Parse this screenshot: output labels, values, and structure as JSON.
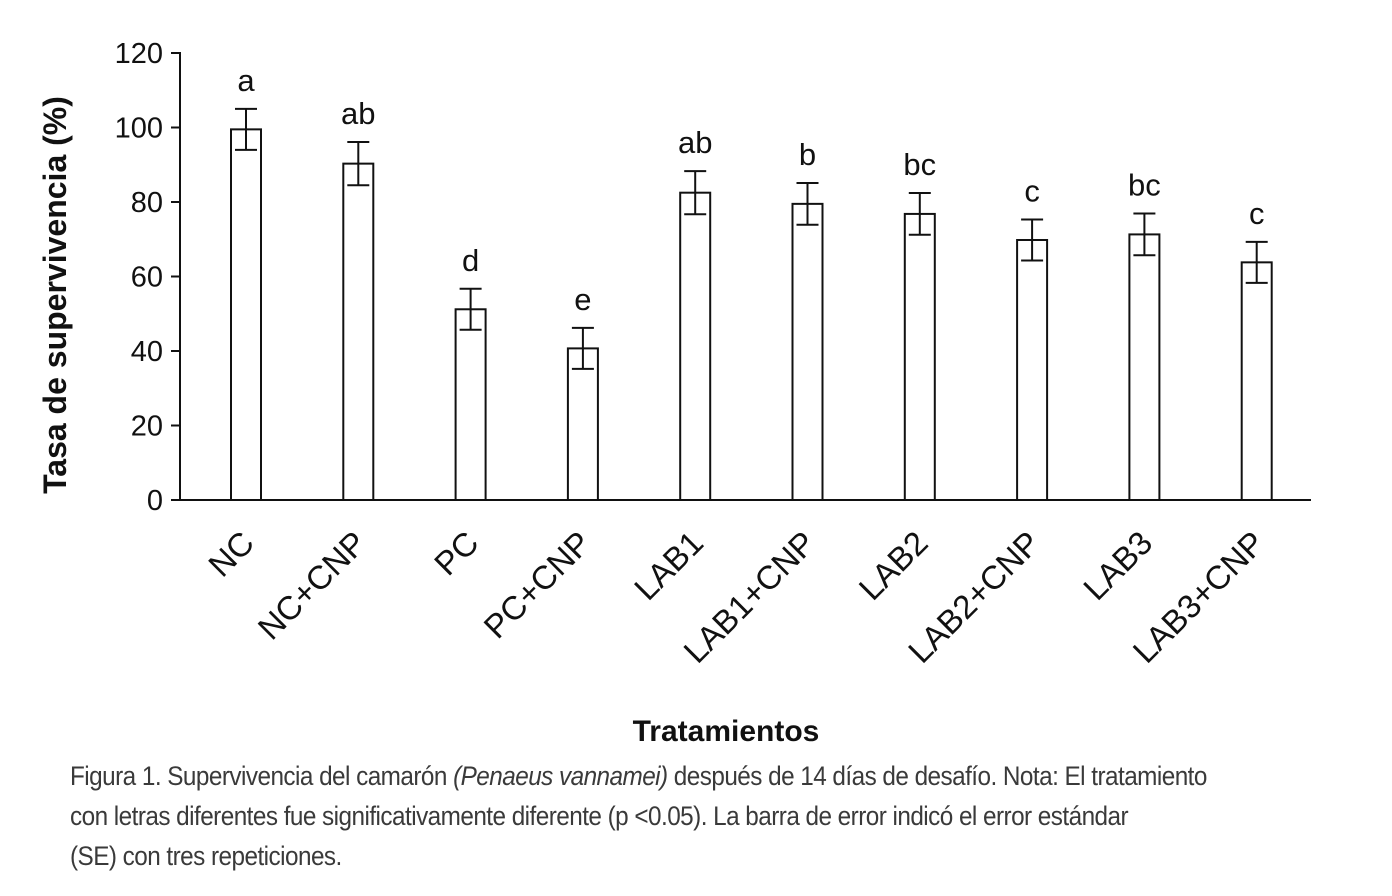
{
  "chart_data": {
    "type": "bar",
    "xlabel": "Tratamientos",
    "ylabel": "Tasa de supervivencia (%)",
    "ylim": [
      0,
      120
    ],
    "yticks": [
      0,
      20,
      40,
      60,
      80,
      100,
      120
    ],
    "categories": [
      "NC",
      "NC+CNP",
      "PC",
      "PC+CNP",
      "LAB1",
      "LAB1+CNP",
      "LAB2",
      "LAB2+CNP",
      "LAB3",
      "LAB3+CNP"
    ],
    "values": [
      99.5,
      90.3,
      51.2,
      40.7,
      82.5,
      79.5,
      76.8,
      69.8,
      71.3,
      63.8
    ],
    "errors": [
      5.5,
      5.8,
      5.5,
      5.5,
      5.8,
      5.6,
      5.6,
      5.5,
      5.6,
      5.5
    ],
    "significance_letters": [
      "a",
      "ab",
      "d",
      "e",
      "ab",
      "b",
      "bc",
      "c",
      "bc",
      "c"
    ],
    "bar_fill": "#ffffff",
    "bar_stroke": "#111111",
    "grid": false,
    "legend": "none"
  },
  "caption": {
    "line1_a": "Figura 1. Supervivencia del camarón ",
    "line1_italic": "(Penaeus vannamei)",
    "line1_b": " después de 14 días de desafío. Nota: El tratamiento",
    "line2": "con letras diferentes fue significativamente diferente (p <0.05). La barra de error indicó el error estándar",
    "line3": "(SE) con tres repeticiones."
  }
}
